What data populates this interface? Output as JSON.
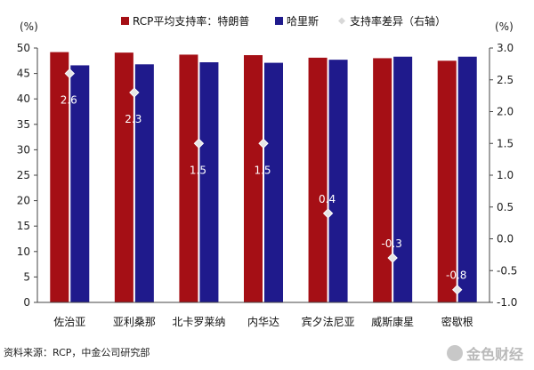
{
  "chart_data": {
    "type": "bar",
    "categories": [
      "佐治亚",
      "亚利桑那",
      "北卡罗莱纳",
      "内华达",
      "宾夕法尼亚",
      "威斯康星",
      "密歇根"
    ],
    "series": [
      {
        "name": "RCP平均支持率：特朗普",
        "values": [
          49.2,
          49.1,
          48.7,
          48.6,
          48.1,
          48.0,
          47.5
        ],
        "color": "#a50f15"
      },
      {
        "name": "哈里斯",
        "values": [
          46.6,
          46.8,
          47.2,
          47.1,
          47.7,
          48.3,
          48.3
        ],
        "color": "#1f1a8c"
      }
    ],
    "diff_series": {
      "name": "支持率差异（右轴）",
      "values": [
        2.6,
        2.3,
        1.5,
        1.5,
        0.4,
        -0.3,
        -0.8
      ],
      "labels": [
        "2.6",
        "2.3",
        "1.5",
        "1.5",
        "0.4",
        "-0.3",
        "-0.8"
      ],
      "color": "#e0e0e0"
    },
    "ylim": [
      0,
      50
    ],
    "y_ticks": [
      0,
      5,
      10,
      15,
      20,
      25,
      30,
      35,
      40,
      45,
      50
    ],
    "y2lim": [
      -1.0,
      3.0
    ],
    "y2_ticks": [
      "-1.0",
      "-0.5",
      "0.0",
      "0.5",
      "1.0",
      "1.5",
      "2.0",
      "2.5",
      "3.0"
    ],
    "y_unit": "(%)",
    "y2_unit": "(%)",
    "grid": false,
    "legend_position": "top"
  },
  "source": "资料来源：RCP，中金公司研究部",
  "watermark": "金色财经"
}
